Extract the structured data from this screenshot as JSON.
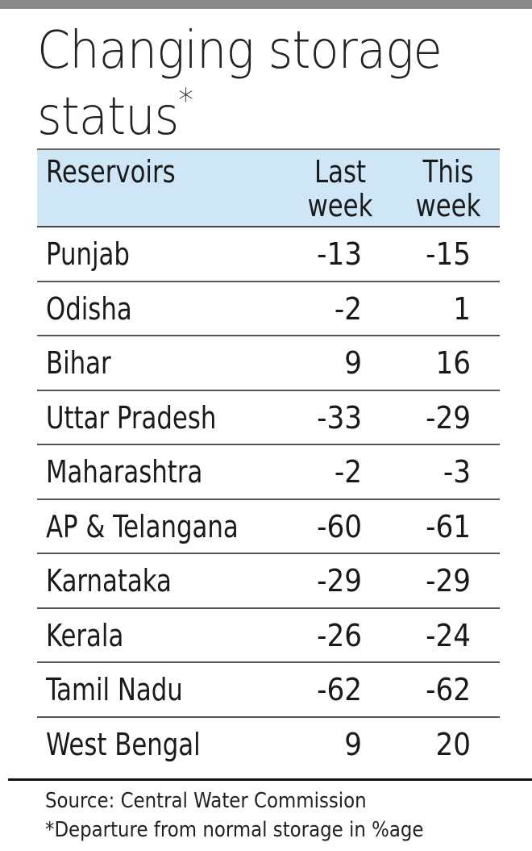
{
  "chart_data": {
    "type": "table",
    "title": "Changing storage status",
    "title_marker": "*",
    "columns": [
      "Reservoirs",
      "Last week",
      "This week"
    ],
    "column_header_lines": [
      [
        "Reservoirs"
      ],
      [
        "Last",
        "week"
      ],
      [
        "This",
        "week"
      ]
    ],
    "rows": [
      {
        "name": "Punjab",
        "last": "-13",
        "this": "-15"
      },
      {
        "name": "Odisha",
        "last": "-2",
        "this": "1"
      },
      {
        "name": "Bihar",
        "last": "9",
        "this": "16"
      },
      {
        "name": "Uttar Pradesh",
        "last": "-33",
        "this": "-29"
      },
      {
        "name": "Maharashtra",
        "last": "-2",
        "this": "-3"
      },
      {
        "name": "AP & Telangana",
        "last": "-60",
        "this": "-61"
      },
      {
        "name": "Karnataka",
        "last": "-29",
        "this": "-29"
      },
      {
        "name": "Kerala",
        "last": "-26",
        "this": "-24"
      },
      {
        "name": "Tamil Nadu",
        "last": "-62",
        "this": "-62"
      },
      {
        "name": "West Bengal",
        "last": "9",
        "this": "20"
      }
    ],
    "source": "Source: Central Water Commission",
    "note": "*Departure from normal storage in %age"
  },
  "colors": {
    "header_bg": "#cfe6f7",
    "top_bar": "#8a8a8a",
    "text": "#1a1a1a"
  }
}
